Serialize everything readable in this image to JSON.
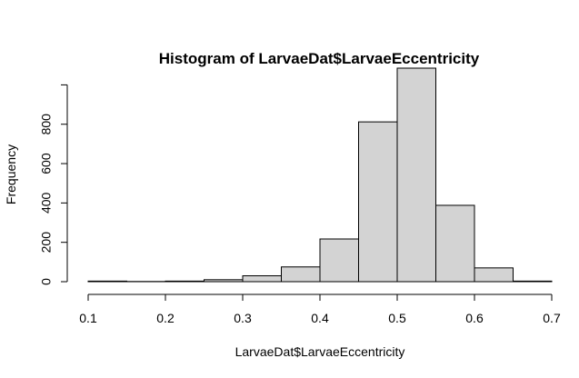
{
  "chart_data": {
    "type": "bar",
    "title": "Histogram of LarvaeDat$LarvaeEccentricity",
    "xlabel": "LarvaeDat$LarvaeEccentricity",
    "ylabel": "Frequency",
    "bin_edges": [
      0.1,
      0.15,
      0.2,
      0.25,
      0.3,
      0.35,
      0.4,
      0.45,
      0.5,
      0.55,
      0.6,
      0.65,
      0.7
    ],
    "values": [
      3,
      1,
      3,
      10,
      30,
      75,
      217,
      812,
      1085,
      388,
      70,
      3
    ],
    "xlim": [
      0.1,
      0.7
    ],
    "ylim": [
      0,
      1085
    ],
    "x_ticks": [
      "0.1",
      "0.2",
      "0.3",
      "0.4",
      "0.5",
      "0.6",
      "0.7"
    ],
    "y_ticks": [
      "0",
      "200",
      "400",
      "600",
      "800"
    ],
    "colors": {
      "bar_fill": "#d3d3d3",
      "bar_stroke": "#000000"
    },
    "grid": false,
    "legend": "none"
  }
}
